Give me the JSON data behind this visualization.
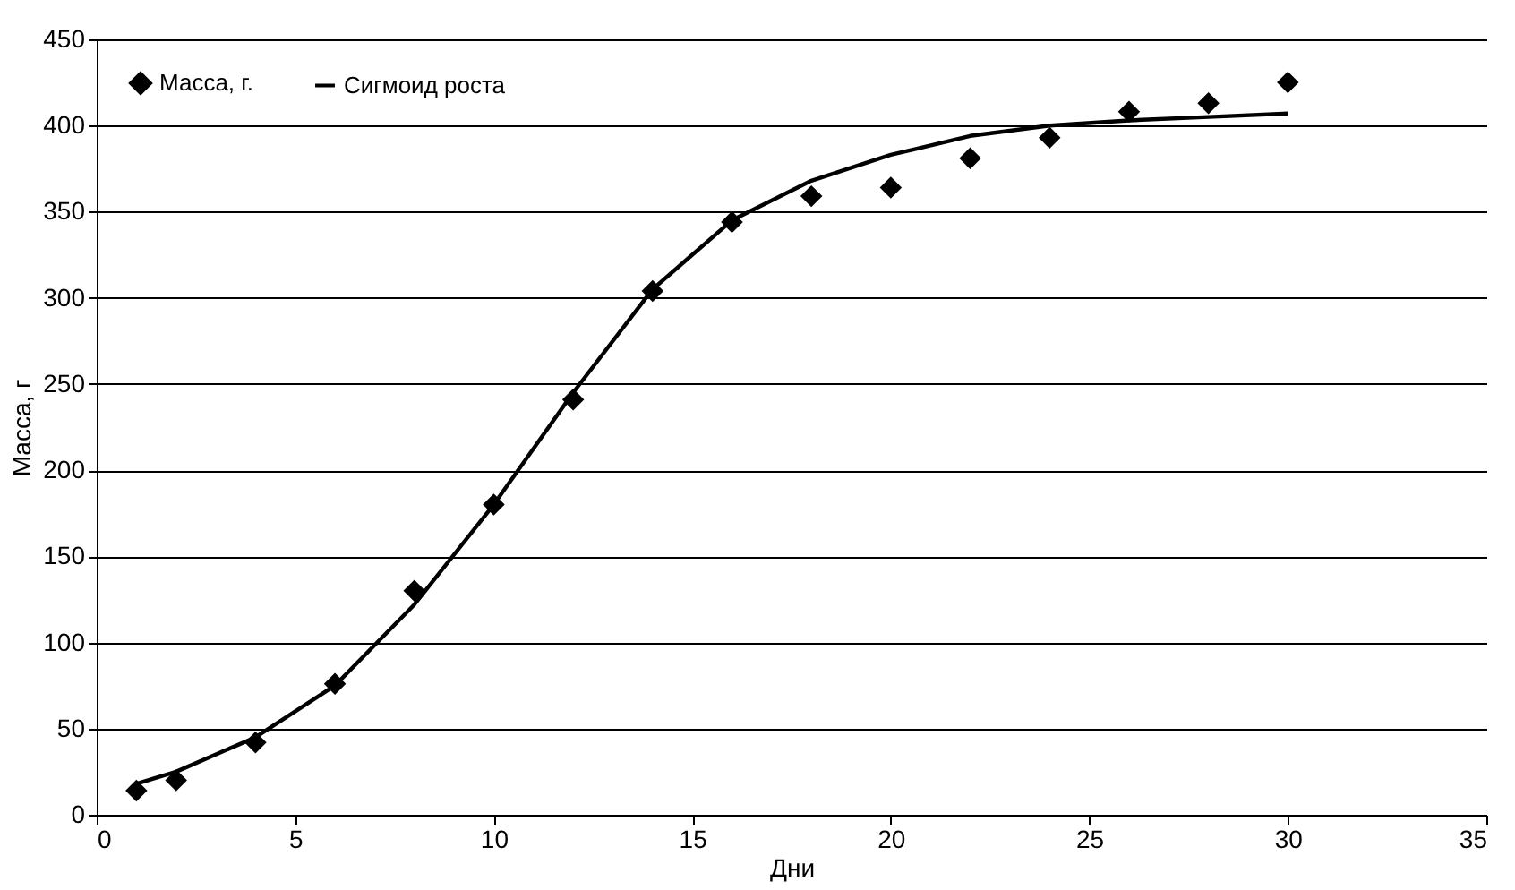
{
  "chart_data": {
    "type": "line",
    "xlabel": "Дни",
    "ylabel": "Масса, г",
    "xlim": [
      0,
      35
    ],
    "xticks": [
      0,
      5,
      10,
      15,
      20,
      25,
      30,
      35
    ],
    "ylim": [
      0,
      450
    ],
    "yticks": [
      0,
      50,
      100,
      150,
      200,
      250,
      300,
      350,
      400,
      450
    ],
    "grid": "y",
    "legend": "top left",
    "series": [
      {
        "name": "Масса, г.",
        "type": "scatter",
        "marker": "diamond",
        "color": "#000000",
        "x": [
          1,
          2,
          4,
          6,
          8,
          10,
          12,
          14,
          16,
          18,
          20,
          22,
          24,
          26,
          28,
          30
        ],
        "values": [
          14,
          20,
          42,
          76,
          130,
          180,
          241,
          304,
          344,
          359,
          364,
          381,
          393,
          408,
          413,
          425
        ]
      },
      {
        "name": "Сигмоид роста",
        "line_style": "solid",
        "color": "#000000",
        "x": [
          1,
          2,
          4,
          6,
          8,
          10,
          12,
          14,
          16,
          18,
          20,
          22,
          24,
          26,
          28,
          30
        ],
        "values": [
          18,
          25,
          45,
          75,
          122,
          180,
          245,
          305,
          345,
          368,
          383,
          394,
          400,
          403,
          405,
          407
        ]
      }
    ]
  }
}
